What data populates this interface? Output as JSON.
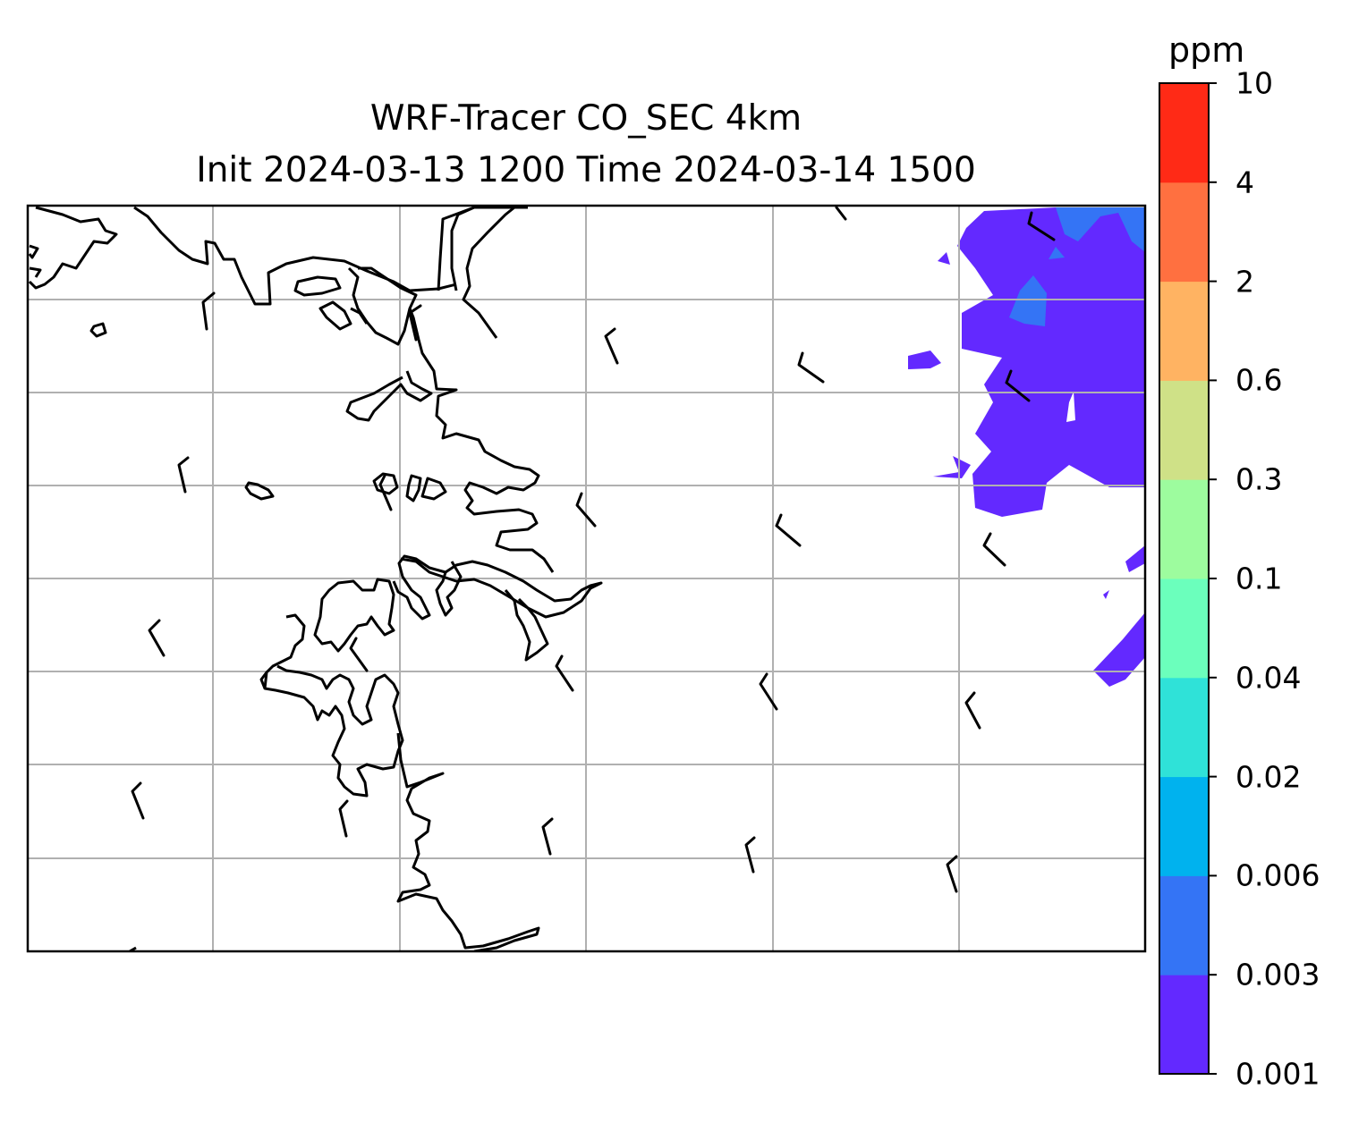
{
  "title_line1": "WRF-Tracer CO_SEC 4km",
  "title_line2": "Init 2024-03-13 1200 Time 2024-03-14 1500",
  "colorbar": {
    "unit": "ppm",
    "levels": [
      "0.001",
      "0.003",
      "0.006",
      "0.02",
      "0.04",
      "0.1",
      "0.3",
      "0.6",
      "2",
      "4",
      "10"
    ],
    "colors": [
      "#6329ff",
      "#3474f5",
      "#00b2ee",
      "#2fe2d8",
      "#6bffbc",
      "#9dfc9e",
      "#cfe187",
      "#ffb362",
      "#ff7040",
      "#ff2a16"
    ]
  },
  "map_colors": {
    "coastline": "#000000",
    "gridline": "#b0b0b0",
    "tracer_low": "#6329ff",
    "tracer_mid": "#3474f5"
  },
  "wind_barbs": {
    "color": "#000000",
    "count": 23
  }
}
